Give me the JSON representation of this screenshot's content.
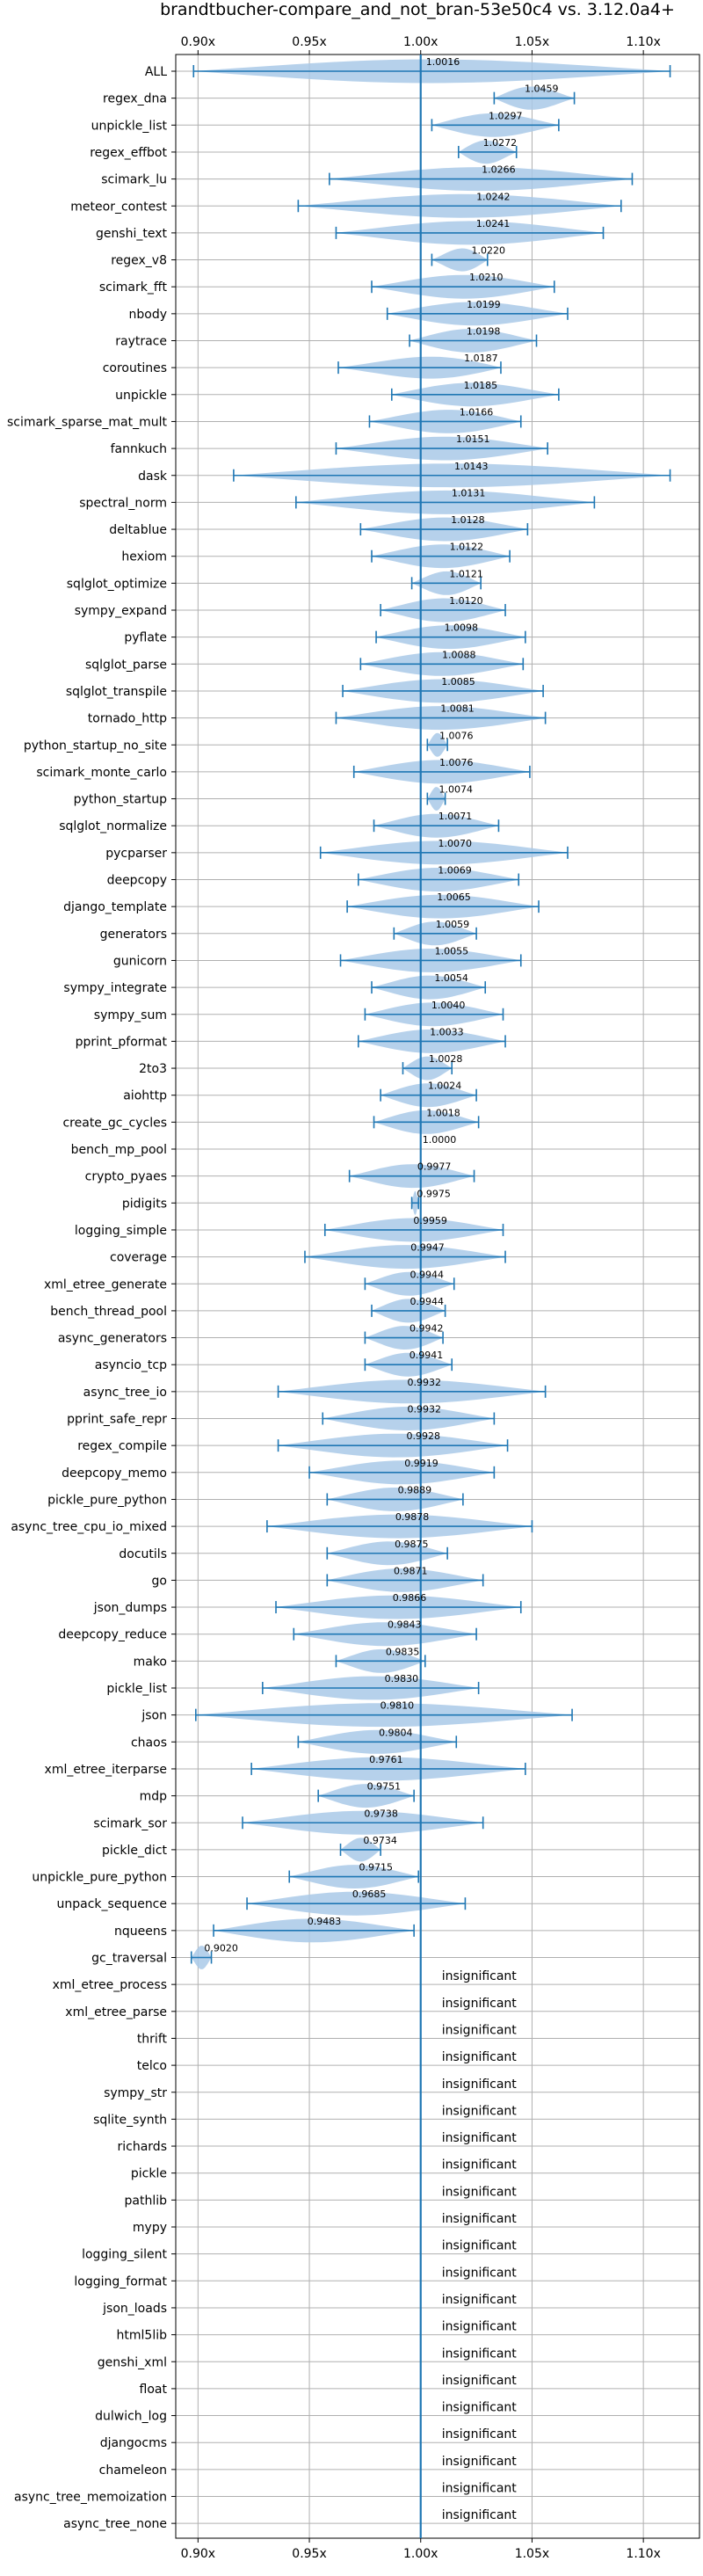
{
  "chart_data": {
    "type": "violin",
    "title": "brandtbucher-compare_and_not_bran-53e50c4 vs. 3.12.0a4+",
    "xlabel": "",
    "ylabel": "",
    "xlim": [
      0.89,
      1.1252
    ],
    "x_ticks": [
      0.9,
      0.95,
      1.0,
      1.05,
      1.1
    ],
    "x_tick_labels": [
      "0.90x",
      "0.95x",
      "1.00x",
      "1.05x",
      "1.10x"
    ],
    "reference_line": 1.0,
    "grid": true,
    "colors": {
      "body": "#a9c9e8",
      "line": "#1f77b4",
      "grid": "#b0b0b0"
    },
    "insignificant_label": "insignificant",
    "rows": [
      {
        "name": "ALL",
        "value": 1.0016,
        "label": "1.0016",
        "min": 0.898,
        "max": 1.112
      },
      {
        "name": "regex_dna",
        "value": 1.0459,
        "label": "1.0459",
        "min": 1.033,
        "max": 1.069
      },
      {
        "name": "unpickle_list",
        "value": 1.0297,
        "label": "1.0297",
        "min": 1.005,
        "max": 1.062
      },
      {
        "name": "regex_effbot",
        "value": 1.0272,
        "label": "1.0272",
        "min": 1.017,
        "max": 1.043
      },
      {
        "name": "scimark_lu",
        "value": 1.0266,
        "label": "1.0266",
        "min": 0.959,
        "max": 1.095
      },
      {
        "name": "meteor_contest",
        "value": 1.0242,
        "label": "1.0242",
        "min": 0.945,
        "max": 1.09
      },
      {
        "name": "genshi_text",
        "value": 1.0241,
        "label": "1.0241",
        "min": 0.962,
        "max": 1.082
      },
      {
        "name": "regex_v8",
        "value": 1.022,
        "label": "1.0220",
        "min": 1.005,
        "max": 1.03
      },
      {
        "name": "scimark_fft",
        "value": 1.021,
        "label": "1.0210",
        "min": 0.978,
        "max": 1.06
      },
      {
        "name": "nbody",
        "value": 1.0199,
        "label": "1.0199",
        "min": 0.985,
        "max": 1.066
      },
      {
        "name": "raytrace",
        "value": 1.0198,
        "label": "1.0198",
        "min": 0.995,
        "max": 1.052
      },
      {
        "name": "coroutines",
        "value": 1.0187,
        "label": "1.0187",
        "min": 0.963,
        "max": 1.036
      },
      {
        "name": "unpickle",
        "value": 1.0185,
        "label": "1.0185",
        "min": 0.987,
        "max": 1.062
      },
      {
        "name": "scimark_sparse_mat_mult",
        "value": 1.0166,
        "label": "1.0166",
        "min": 0.977,
        "max": 1.045
      },
      {
        "name": "fannkuch",
        "value": 1.0151,
        "label": "1.0151",
        "min": 0.962,
        "max": 1.057
      },
      {
        "name": "dask",
        "value": 1.0143,
        "label": "1.0143",
        "min": 0.916,
        "max": 1.112
      },
      {
        "name": "spectral_norm",
        "value": 1.0131,
        "label": "1.0131",
        "min": 0.944,
        "max": 1.078
      },
      {
        "name": "deltablue",
        "value": 1.0128,
        "label": "1.0128",
        "min": 0.973,
        "max": 1.048
      },
      {
        "name": "hexiom",
        "value": 1.0122,
        "label": "1.0122",
        "min": 0.978,
        "max": 1.04
      },
      {
        "name": "sqlglot_optimize",
        "value": 1.0121,
        "label": "1.0121",
        "min": 0.996,
        "max": 1.027
      },
      {
        "name": "sympy_expand",
        "value": 1.012,
        "label": "1.0120",
        "min": 0.982,
        "max": 1.038
      },
      {
        "name": "pyflate",
        "value": 1.0098,
        "label": "1.0098",
        "min": 0.98,
        "max": 1.047
      },
      {
        "name": "sqlglot_parse",
        "value": 1.0088,
        "label": "1.0088",
        "min": 0.973,
        "max": 1.046
      },
      {
        "name": "sqlglot_transpile",
        "value": 1.0085,
        "label": "1.0085",
        "min": 0.965,
        "max": 1.055
      },
      {
        "name": "tornado_http",
        "value": 1.0081,
        "label": "1.0081",
        "min": 0.962,
        "max": 1.056
      },
      {
        "name": "python_startup_no_site",
        "value": 1.0076,
        "label": "1.0076",
        "min": 1.003,
        "max": 1.012
      },
      {
        "name": "scimark_monte_carlo",
        "value": 1.0076,
        "label": "1.0076",
        "min": 0.97,
        "max": 1.049
      },
      {
        "name": "python_startup",
        "value": 1.0074,
        "label": "1.0074",
        "min": 1.003,
        "max": 1.011
      },
      {
        "name": "sqlglot_normalize",
        "value": 1.0071,
        "label": "1.0071",
        "min": 0.979,
        "max": 1.035
      },
      {
        "name": "pycparser",
        "value": 1.007,
        "label": "1.0070",
        "min": 0.955,
        "max": 1.066
      },
      {
        "name": "deepcopy",
        "value": 1.0069,
        "label": "1.0069",
        "min": 0.972,
        "max": 1.044
      },
      {
        "name": "django_template",
        "value": 1.0065,
        "label": "1.0065",
        "min": 0.967,
        "max": 1.053
      },
      {
        "name": "generators",
        "value": 1.0059,
        "label": "1.0059",
        "min": 0.988,
        "max": 1.025
      },
      {
        "name": "gunicorn",
        "value": 1.0055,
        "label": "1.0055",
        "min": 0.964,
        "max": 1.045
      },
      {
        "name": "sympy_integrate",
        "value": 1.0054,
        "label": "1.0054",
        "min": 0.978,
        "max": 1.029
      },
      {
        "name": "sympy_sum",
        "value": 1.004,
        "label": "1.0040",
        "min": 0.975,
        "max": 1.037
      },
      {
        "name": "pprint_pformat",
        "value": 1.0033,
        "label": "1.0033",
        "min": 0.972,
        "max": 1.038
      },
      {
        "name": "2to3",
        "value": 1.0028,
        "label": "1.0028",
        "min": 0.992,
        "max": 1.014
      },
      {
        "name": "aiohttp",
        "value": 1.0024,
        "label": "1.0024",
        "min": 0.982,
        "max": 1.025
      },
      {
        "name": "create_gc_cycles",
        "value": 1.0018,
        "label": "1.0018",
        "min": 0.979,
        "max": 1.026
      },
      {
        "name": "bench_mp_pool",
        "value": 1.0,
        "label": "1.0000",
        "min": 1.0,
        "max": 1.0
      },
      {
        "name": "crypto_pyaes",
        "value": 0.9977,
        "label": "0.9977",
        "min": 0.968,
        "max": 1.024
      },
      {
        "name": "pidigits",
        "value": 0.9975,
        "label": "0.9975",
        "min": 0.996,
        "max": 0.999
      },
      {
        "name": "logging_simple",
        "value": 0.9959,
        "label": "0.9959",
        "min": 0.957,
        "max": 1.037
      },
      {
        "name": "coverage",
        "value": 0.9947,
        "label": "0.9947",
        "min": 0.948,
        "max": 1.038
      },
      {
        "name": "xml_etree_generate",
        "value": 0.9944,
        "label": "0.9944",
        "min": 0.975,
        "max": 1.015
      },
      {
        "name": "bench_thread_pool",
        "value": 0.9944,
        "label": "0.9944",
        "min": 0.978,
        "max": 1.011
      },
      {
        "name": "async_generators",
        "value": 0.9942,
        "label": "0.9942",
        "min": 0.975,
        "max": 1.01
      },
      {
        "name": "asyncio_tcp",
        "value": 0.9941,
        "label": "0.9941",
        "min": 0.975,
        "max": 1.014
      },
      {
        "name": "async_tree_io",
        "value": 0.9932,
        "label": "0.9932",
        "min": 0.936,
        "max": 1.056
      },
      {
        "name": "pprint_safe_repr",
        "value": 0.9932,
        "label": "0.9932",
        "min": 0.956,
        "max": 1.033
      },
      {
        "name": "regex_compile",
        "value": 0.9928,
        "label": "0.9928",
        "min": 0.936,
        "max": 1.039
      },
      {
        "name": "deepcopy_memo",
        "value": 0.9919,
        "label": "0.9919",
        "min": 0.95,
        "max": 1.033
      },
      {
        "name": "pickle_pure_python",
        "value": 0.9889,
        "label": "0.9889",
        "min": 0.958,
        "max": 1.019
      },
      {
        "name": "async_tree_cpu_io_mixed",
        "value": 0.9878,
        "label": "0.9878",
        "min": 0.931,
        "max": 1.05
      },
      {
        "name": "docutils",
        "value": 0.9875,
        "label": "0.9875",
        "min": 0.958,
        "max": 1.012
      },
      {
        "name": "go",
        "value": 0.9871,
        "label": "0.9871",
        "min": 0.958,
        "max": 1.028
      },
      {
        "name": "json_dumps",
        "value": 0.9866,
        "label": "0.9866",
        "min": 0.935,
        "max": 1.045
      },
      {
        "name": "deepcopy_reduce",
        "value": 0.9843,
        "label": "0.9843",
        "min": 0.943,
        "max": 1.025
      },
      {
        "name": "mako",
        "value": 0.9835,
        "label": "0.9835",
        "min": 0.962,
        "max": 1.002
      },
      {
        "name": "pickle_list",
        "value": 0.983,
        "label": "0.9830",
        "min": 0.929,
        "max": 1.026
      },
      {
        "name": "json",
        "value": 0.981,
        "label": "0.9810",
        "min": 0.899,
        "max": 1.068
      },
      {
        "name": "chaos",
        "value": 0.9804,
        "label": "0.9804",
        "min": 0.945,
        "max": 1.016
      },
      {
        "name": "xml_etree_iterparse",
        "value": 0.9761,
        "label": "0.9761",
        "min": 0.924,
        "max": 1.047
      },
      {
        "name": "mdp",
        "value": 0.9751,
        "label": "0.9751",
        "min": 0.954,
        "max": 0.997
      },
      {
        "name": "scimark_sor",
        "value": 0.9738,
        "label": "0.9738",
        "min": 0.92,
        "max": 1.028
      },
      {
        "name": "pickle_dict",
        "value": 0.9734,
        "label": "0.9734",
        "min": 0.964,
        "max": 0.982
      },
      {
        "name": "unpickle_pure_python",
        "value": 0.9715,
        "label": "0.9715",
        "min": 0.941,
        "max": 0.999
      },
      {
        "name": "unpack_sequence",
        "value": 0.9685,
        "label": "0.9685",
        "min": 0.922,
        "max": 1.02
      },
      {
        "name": "nqueens",
        "value": 0.9483,
        "label": "0.9483",
        "min": 0.907,
        "max": 0.997
      },
      {
        "name": "gc_traversal",
        "value": 0.902,
        "label": "0.9020",
        "min": 0.897,
        "max": 0.906
      },
      {
        "name": "xml_etree_process",
        "insignificant": true
      },
      {
        "name": "xml_etree_parse",
        "insignificant": true
      },
      {
        "name": "thrift",
        "insignificant": true
      },
      {
        "name": "telco",
        "insignificant": true
      },
      {
        "name": "sympy_str",
        "insignificant": true
      },
      {
        "name": "sqlite_synth",
        "insignificant": true
      },
      {
        "name": "richards",
        "insignificant": true
      },
      {
        "name": "pickle",
        "insignificant": true
      },
      {
        "name": "pathlib",
        "insignificant": true
      },
      {
        "name": "mypy",
        "insignificant": true
      },
      {
        "name": "logging_silent",
        "insignificant": true
      },
      {
        "name": "logging_format",
        "insignificant": true
      },
      {
        "name": "json_loads",
        "insignificant": true
      },
      {
        "name": "html5lib",
        "insignificant": true
      },
      {
        "name": "genshi_xml",
        "insignificant": true
      },
      {
        "name": "float",
        "insignificant": true
      },
      {
        "name": "dulwich_log",
        "insignificant": true
      },
      {
        "name": "djangocms",
        "insignificant": true
      },
      {
        "name": "chameleon",
        "insignificant": true
      },
      {
        "name": "async_tree_memoization",
        "insignificant": true
      },
      {
        "name": "async_tree_none",
        "insignificant": true
      }
    ]
  }
}
